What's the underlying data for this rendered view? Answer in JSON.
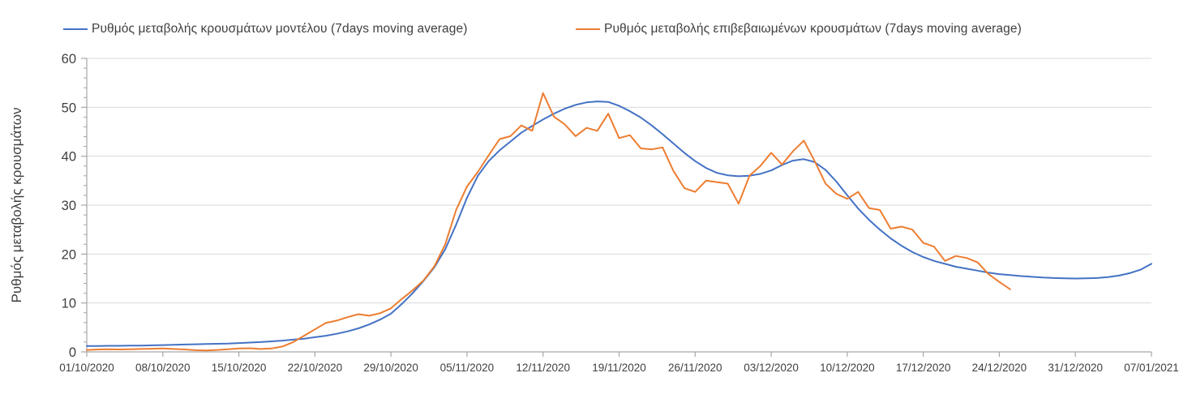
{
  "chart_data": {
    "type": "line",
    "title": "",
    "xlabel": "",
    "ylabel": "Ρυθμός μεταβολής κρουσμάτων",
    "ylim": [
      0,
      60
    ],
    "y_ticks": [
      0,
      10,
      20,
      30,
      40,
      50,
      60
    ],
    "y_minor_tick_step": 2,
    "grid": "horizontal-major-only",
    "legend_position": "top",
    "x_tick_labels": [
      "01/10/2020",
      "08/10/2020",
      "15/10/2020",
      "22/10/2020",
      "29/10/2020",
      "05/11/2020",
      "12/11/2020",
      "19/11/2020",
      "26/11/2020",
      "03/12/2020",
      "10/12/2020",
      "17/12/2020",
      "24/12/2020",
      "31/12/2020",
      "07/01/2021"
    ],
    "x_days_per_tick": 7,
    "x_total_days": 98,
    "x_point_spacing": "daily",
    "series": [
      {
        "name": "Ρυθμός μεταβολής κρουσμάτων μοντέλου (7days moving average)",
        "color": "#4472C4",
        "start_day": 0,
        "values": [
          1.2,
          1.2,
          1.25,
          1.25,
          1.3,
          1.3,
          1.35,
          1.4,
          1.45,
          1.5,
          1.55,
          1.6,
          1.65,
          1.7,
          1.8,
          1.9,
          2.0,
          2.15,
          2.3,
          2.5,
          2.7,
          3.0,
          3.3,
          3.7,
          4.2,
          4.8,
          5.6,
          6.6,
          7.8,
          9.8,
          12.0,
          14.5,
          17.3,
          21.0,
          26.0,
          31.5,
          36.0,
          39.0,
          41.2,
          43.0,
          44.8,
          46.2,
          47.5,
          48.7,
          49.7,
          50.5,
          51.0,
          51.2,
          51.1,
          50.3,
          49.2,
          47.9,
          46.3,
          44.5,
          42.6,
          40.7,
          39.0,
          37.6,
          36.6,
          36.1,
          35.9,
          36.0,
          36.4,
          37.1,
          38.2,
          39.1,
          39.4,
          38.8,
          37.2,
          34.8,
          32.0,
          29.3,
          27.0,
          25.0,
          23.2,
          21.7,
          20.4,
          19.4,
          18.6,
          18.0,
          17.4,
          17.0,
          16.6,
          16.2,
          15.9,
          15.7,
          15.5,
          15.35,
          15.2,
          15.1,
          15.05,
          15.0,
          15.05,
          15.1,
          15.3,
          15.6,
          16.1,
          16.8,
          18.0
        ]
      },
      {
        "name": "Ρυθμός μεταβολής επιβεβαιωμένων κρουσμάτων (7days moving average)",
        "color": "#ED7D31",
        "start_day": 0,
        "values": [
          0.4,
          0.5,
          0.55,
          0.5,
          0.55,
          0.6,
          0.65,
          0.7,
          0.6,
          0.5,
          0.35,
          0.3,
          0.4,
          0.55,
          0.7,
          0.75,
          0.6,
          0.7,
          1.1,
          2.0,
          3.3,
          4.6,
          5.9,
          6.4,
          7.1,
          7.7,
          7.4,
          7.9,
          8.9,
          10.8,
          12.6,
          14.6,
          17.5,
          22.0,
          29.0,
          33.8,
          36.8,
          40.2,
          43.5,
          44.1,
          46.3,
          45.2,
          52.9,
          48.1,
          46.5,
          44.1,
          45.8,
          45.2,
          48.7,
          43.7,
          44.3,
          41.6,
          41.4,
          41.8,
          37.0,
          33.5,
          32.7,
          35.0,
          34.7,
          34.4,
          30.3,
          36.0,
          38.0,
          40.7,
          38.3,
          41.0,
          43.2,
          39.0,
          34.4,
          32.3,
          31.3,
          32.7,
          29.4,
          29.0,
          25.2,
          25.6,
          25.0,
          22.3,
          21.5,
          18.6,
          19.6,
          19.2,
          18.3,
          15.9,
          14.3,
          12.8
        ]
      }
    ],
    "style_colors": {
      "axis_line": "#A6A6A6",
      "gridline": "#D9D9D9",
      "tick_text": "#404040"
    }
  }
}
